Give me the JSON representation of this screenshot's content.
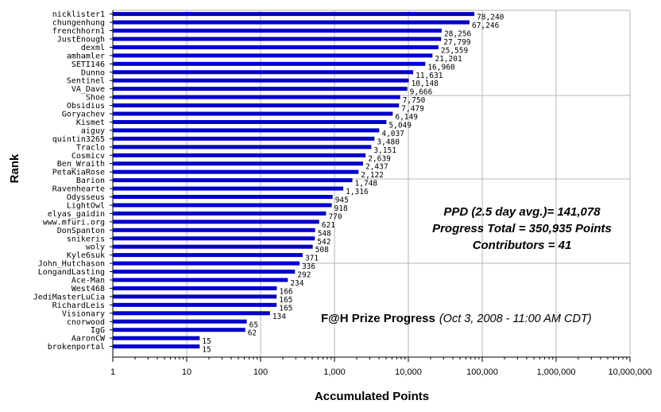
{
  "chart_data": {
    "type": "bar",
    "orientation": "horizontal",
    "x_scale": "log",
    "xlim": [
      1,
      10000000
    ],
    "xlabel": "Accumulated Points",
    "ylabel": "Rank",
    "grid": true,
    "bar_color": "#0000cc",
    "x_ticks": [
      "1",
      "10",
      "100",
      "1,000",
      "10,000",
      "100,000",
      "1,000,000",
      "10,000,000"
    ],
    "x_tick_values": [
      1,
      10,
      100,
      1000,
      10000,
      100000,
      1000000,
      10000000
    ],
    "categories": [
      "nicklister1",
      "chungenhung",
      "frenchhorn1",
      "JustEnough",
      "dexml",
      "amhamler",
      "SETI146",
      "Dunno",
      "Sentinel",
      "VA_Dave",
      "Shoe",
      "Obsidius",
      "Goryachev",
      "Kismet",
      "aiguy",
      "quintin3265",
      "Traclo",
      "Cosmicv",
      "Ben_Wraith",
      "PetaKiaRose",
      "Barion",
      "Ravenhearte",
      "Odysseus",
      "LightOwl",
      "elyas_gaidin",
      "www.mfuri.org",
      "DonSpanton",
      "snikeris",
      "woly",
      "Kyle6suk",
      "John_Hutchason",
      "LongandLasting",
      "Ace-Man",
      "West468",
      "JediMasterLuCia",
      "RichardLeis",
      "Visionary",
      "cnorwood",
      "IgG",
      "AaronCW",
      "brokenportal"
    ],
    "values": [
      78240,
      67246,
      28256,
      27799,
      25559,
      21201,
      16960,
      11631,
      10148,
      9666,
      7750,
      7479,
      6149,
      5049,
      4037,
      3480,
      3151,
      2639,
      2437,
      2122,
      1748,
      1316,
      945,
      918,
      770,
      621,
      548,
      542,
      508,
      371,
      336,
      292,
      234,
      166,
      165,
      165,
      134,
      65,
      62,
      15,
      15
    ],
    "value_labels": [
      "78,240",
      "67,246",
      "28,256",
      "27,799",
      "25,559",
      "21,201",
      "16,960",
      "11,631",
      "10,148",
      "9,666",
      "7,750",
      "7,479",
      "6,149",
      "5,049",
      "4,037",
      "3,480",
      "3,151",
      "2,639",
      "2,437",
      "2,122",
      "1,748",
      "1,316",
      "945",
      "918",
      "770",
      "621",
      "548",
      "542",
      "508",
      "371",
      "336",
      "292",
      "234",
      "166",
      "165",
      "165",
      "134",
      "65",
      "62",
      "15",
      "15"
    ],
    "annotations": {
      "stat_lines": [
        "PPD (2.5 day avg.)= 141,078",
        "Progress Total = 350,935 Points",
        "Contributors = 41"
      ],
      "caption_main": "F@H Prize Progress",
      "caption_sub": "(Oct 3, 2008 - 11:00 AM CDT)"
    }
  }
}
